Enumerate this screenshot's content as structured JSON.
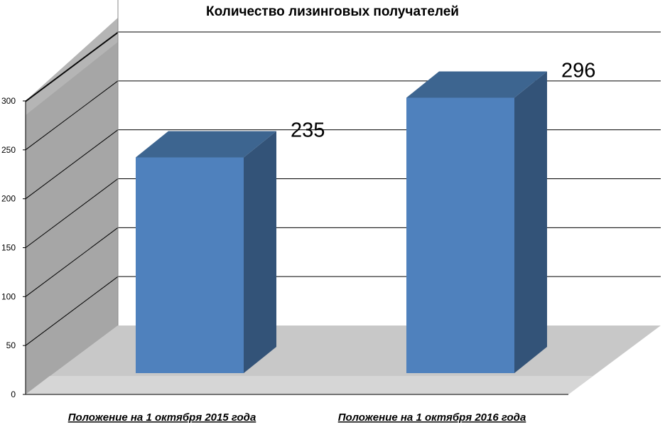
{
  "chart_data": {
    "type": "bar",
    "title": "Количество лизинговых получателей",
    "categories": [
      "Положение на 1 октября 2015 года",
      "Положение на 1 октября 2016 года"
    ],
    "values": [
      235,
      296
    ],
    "data_labels": [
      "235",
      "296"
    ],
    "ylim": [
      0,
      300
    ],
    "yticks": [
      "0",
      "50",
      "100",
      "150",
      "200",
      "250",
      "300"
    ],
    "grid": true,
    "legend": "none",
    "three_d": true,
    "colors": {
      "bar_front": "#4F81BD",
      "bar_top": "#3D6590",
      "bar_side": "#335378",
      "back_wall": "#A6A6A6",
      "floor": "#C8C8C8",
      "gridline": "#000000"
    }
  }
}
